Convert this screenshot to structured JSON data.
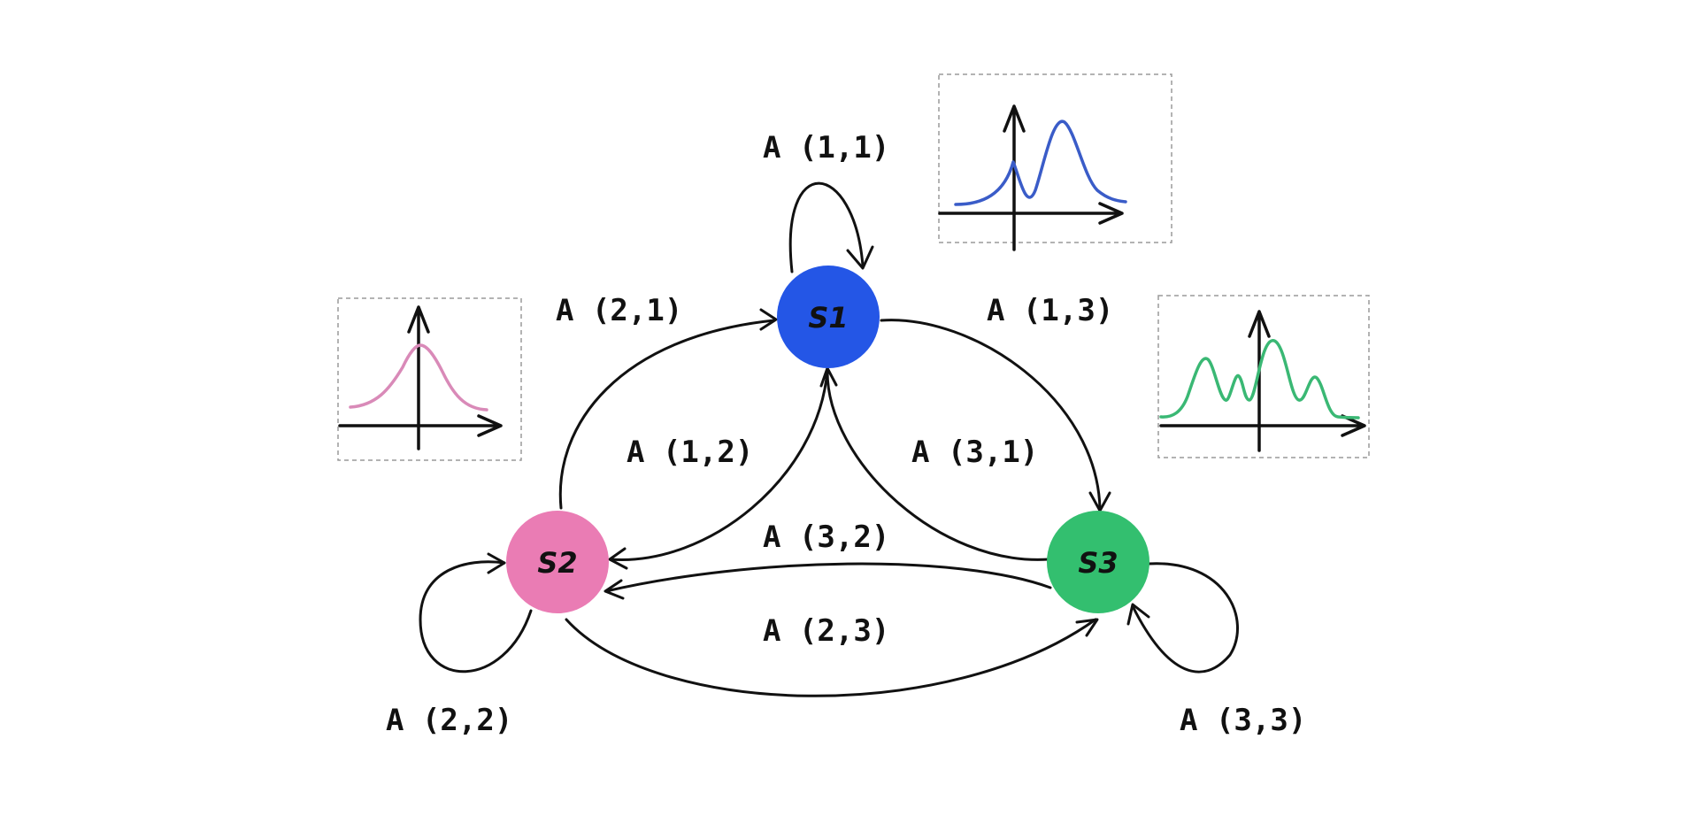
{
  "colors": {
    "s1": "#2456e6",
    "s2": "#ea7cb4",
    "s3": "#33bf6f",
    "s1_curve": "#3a5cc8",
    "s2_curve": "#d98ab8",
    "s3_curve": "#3ab874",
    "line": "#111111"
  },
  "nodes": {
    "s1": {
      "label": "S1"
    },
    "s2": {
      "label": "S2"
    },
    "s3": {
      "label": "S3"
    }
  },
  "edges": {
    "a11": {
      "label": "A (1,1)"
    },
    "a21": {
      "label": "A (2,1)"
    },
    "a13": {
      "label": "A (1,3)"
    },
    "a12": {
      "label": "A (1,2)"
    },
    "a31": {
      "label": "A (3,1)"
    },
    "a32": {
      "label": "A (3,2)"
    },
    "a23": {
      "label": "A (2,3)"
    },
    "a22": {
      "label": "A (2,2)"
    },
    "a33": {
      "label": "A (3,3)"
    }
  },
  "emission_insets": {
    "s1": {
      "shape": "bimodal, smaller left peak and taller right peak"
    },
    "s2": {
      "shape": "single bell-shaped peak"
    },
    "s3": {
      "shape": "multimodal, four peaks"
    }
  }
}
